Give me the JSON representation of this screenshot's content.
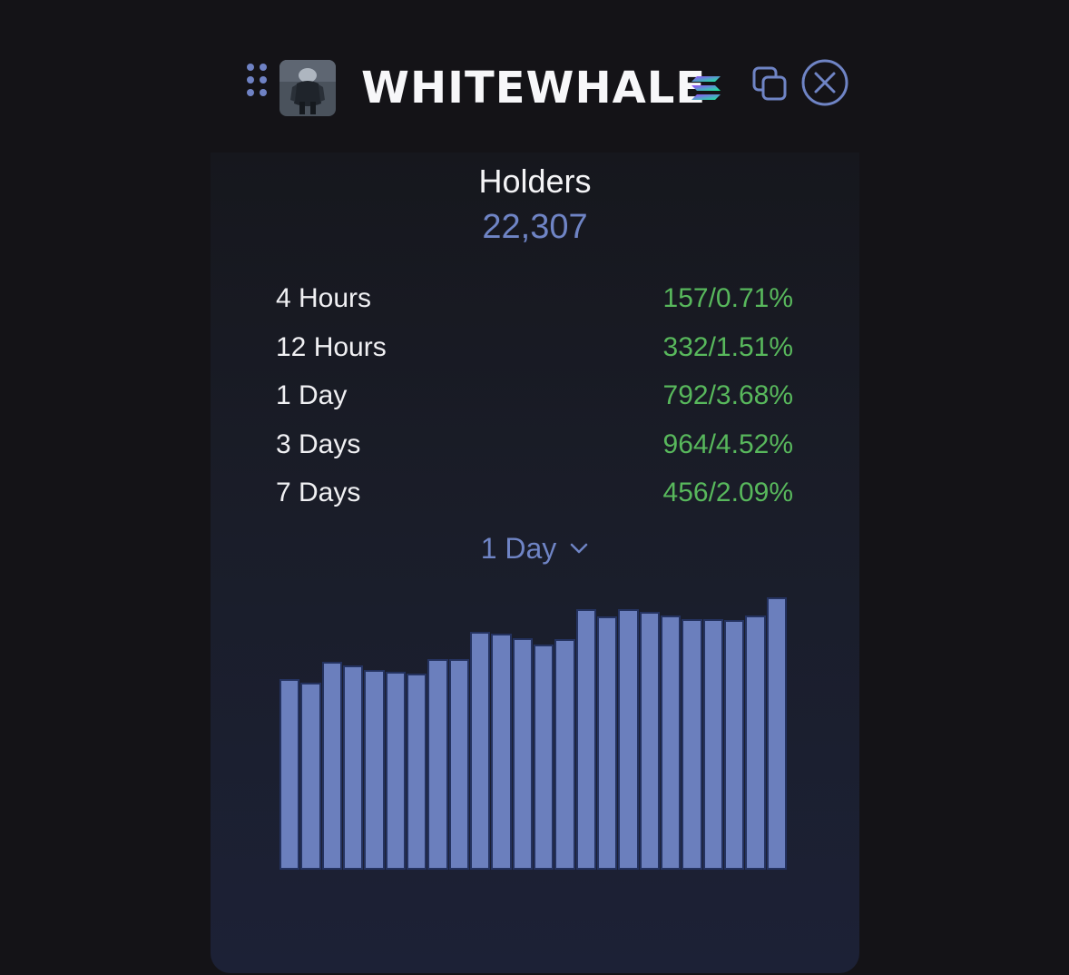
{
  "header": {
    "token_name": "WHITEWHALE",
    "chain_icon": "solana-icon",
    "copy_icon": "copy-icon",
    "close_icon": "close-icon",
    "drag_icon": "drag-handle-icon"
  },
  "holders": {
    "label": "Holders",
    "count": "22,307"
  },
  "stats": [
    {
      "period": "4 Hours",
      "change": "157/0.71%"
    },
    {
      "period": "12 Hours",
      "change": "332/1.51%"
    },
    {
      "period": "1 Day",
      "change": "792/3.68%"
    },
    {
      "period": "3 Days",
      "change": "964/4.52%"
    },
    {
      "period": "7 Days",
      "change": "456/2.09%"
    }
  ],
  "period_select": {
    "selected": "1 Day"
  },
  "colors": {
    "background": "#141317",
    "accent": "#6f84c5",
    "positive": "#58b85c",
    "bar_fill": "#6b7fbd",
    "bar_border": "#24325f"
  },
  "chart_data": {
    "type": "bar",
    "values": [
      212,
      208,
      231,
      227,
      222,
      220,
      218,
      234,
      234,
      265,
      262,
      257,
      250,
      256,
      290,
      282,
      290,
      287,
      283,
      279,
      279,
      278,
      283,
      303
    ],
    "ylim": [
      0,
      315
    ]
  }
}
